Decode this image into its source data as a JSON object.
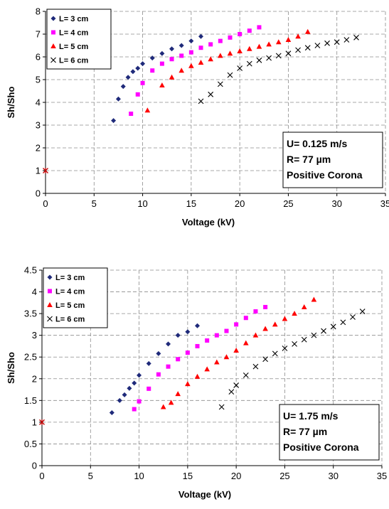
{
  "chart_data": [
    {
      "type": "scatter",
      "xlabel": "Voltage (kV)",
      "ylabel": "Sh/Sho",
      "xlim": [
        0,
        35
      ],
      "ylim": [
        0,
        8
      ],
      "xticks": [
        0,
        5,
        10,
        15,
        20,
        25,
        30,
        35
      ],
      "yticks": [
        0,
        1,
        2,
        3,
        4,
        5,
        6,
        7,
        8
      ],
      "grid": true,
      "legend_position": "top-left",
      "reference_point": {
        "x": 0,
        "y": 1,
        "color": "#C00000"
      },
      "annotation": [
        "U= 0.125 m/s",
        "R= 77 µm",
        "Positive Corona"
      ],
      "series": [
        {
          "name": "L= 3 cm",
          "color": "#1F2A7A",
          "marker": "diamond",
          "x": [
            7,
            7.5,
            8,
            8.5,
            9,
            9.5,
            10,
            11,
            12,
            13,
            14,
            15,
            16
          ],
          "y": [
            3.2,
            4.15,
            4.7,
            5.1,
            5.35,
            5.5,
            5.7,
            5.95,
            6.15,
            6.35,
            6.5,
            6.7,
            6.9
          ]
        },
        {
          "name": "L= 4 cm",
          "color": "#FF00FF",
          "marker": "square",
          "x": [
            8.8,
            9.5,
            10,
            11,
            12,
            13,
            14,
            15,
            16,
            17,
            18,
            19,
            20,
            21,
            22
          ],
          "y": [
            3.5,
            4.35,
            4.85,
            5.4,
            5.7,
            5.9,
            6.05,
            6.2,
            6.4,
            6.55,
            6.7,
            6.85,
            7.0,
            7.15,
            7.3
          ]
        },
        {
          "name": "L= 5 cm",
          "color": "#FF0000",
          "marker": "triangle",
          "x": [
            10.5,
            12,
            13,
            14,
            15,
            16,
            17,
            18,
            19,
            20,
            21,
            22,
            23,
            24,
            25,
            26,
            27
          ],
          "y": [
            3.65,
            4.75,
            5.1,
            5.4,
            5.6,
            5.75,
            5.9,
            6.05,
            6.15,
            6.25,
            6.35,
            6.45,
            6.55,
            6.65,
            6.75,
            6.9,
            7.1
          ]
        },
        {
          "name": "L= 6 cm",
          "color": "#000000",
          "marker": "x",
          "x": [
            16,
            17,
            18,
            19,
            20,
            21,
            22,
            23,
            24,
            25,
            26,
            27,
            28,
            29,
            30,
            31,
            32
          ],
          "y": [
            4.05,
            4.35,
            4.8,
            5.2,
            5.5,
            5.7,
            5.85,
            5.95,
            6.05,
            6.15,
            6.3,
            6.4,
            6.5,
            6.6,
            6.65,
            6.75,
            6.85
          ]
        }
      ]
    },
    {
      "type": "scatter",
      "xlabel": "Voltage (kV)",
      "ylabel": "Sh/Sho",
      "xlim": [
        0,
        35
      ],
      "ylim": [
        0,
        4.5
      ],
      "xticks": [
        0,
        5,
        10,
        15,
        20,
        25,
        30,
        35
      ],
      "yticks": [
        0,
        0.5,
        1,
        1.5,
        2,
        2.5,
        3,
        3.5,
        4,
        4.5
      ],
      "grid": true,
      "legend_position": "top-left",
      "reference_point": {
        "x": 0,
        "y": 1,
        "color": "#C00000"
      },
      "annotation": [
        "U= 1.75 m/s",
        "R= 77 µm",
        "Positive Corona"
      ],
      "series": [
        {
          "name": "L= 3 cm",
          "color": "#1F2A7A",
          "marker": "diamond",
          "x": [
            7.2,
            8,
            8.5,
            9,
            9.5,
            10,
            11,
            12,
            13,
            14,
            15,
            16
          ],
          "y": [
            1.22,
            1.5,
            1.63,
            1.78,
            1.9,
            2.08,
            2.35,
            2.58,
            2.8,
            3.0,
            3.08,
            3.22
          ]
        },
        {
          "name": "L= 4 cm",
          "color": "#FF00FF",
          "marker": "square",
          "x": [
            9.5,
            10,
            11,
            12,
            13,
            14,
            15,
            16,
            17,
            18,
            19,
            20,
            21,
            22,
            23
          ],
          "y": [
            1.3,
            1.48,
            1.77,
            2.1,
            2.28,
            2.45,
            2.6,
            2.75,
            2.88,
            3.0,
            3.1,
            3.25,
            3.4,
            3.55,
            3.65
          ]
        },
        {
          "name": "L= 5 cm",
          "color": "#FF0000",
          "marker": "triangle",
          "x": [
            12.5,
            13.3,
            14,
            15,
            16,
            17,
            18,
            19,
            20,
            21,
            22,
            23,
            24,
            25,
            26,
            27,
            28
          ],
          "y": [
            1.35,
            1.45,
            1.65,
            1.88,
            2.05,
            2.22,
            2.38,
            2.5,
            2.65,
            2.82,
            3.0,
            3.15,
            3.25,
            3.38,
            3.5,
            3.65,
            3.82
          ]
        },
        {
          "name": "L= 6 cm",
          "color": "#000000",
          "marker": "x",
          "x": [
            18.5,
            19.5,
            20,
            21,
            22,
            23,
            24,
            25,
            26,
            27,
            28,
            29,
            30,
            31,
            32,
            33
          ],
          "y": [
            1.35,
            1.7,
            1.85,
            2.08,
            2.28,
            2.45,
            2.58,
            2.7,
            2.8,
            2.9,
            3.0,
            3.1,
            3.2,
            3.3,
            3.42,
            3.55
          ]
        }
      ]
    }
  ]
}
